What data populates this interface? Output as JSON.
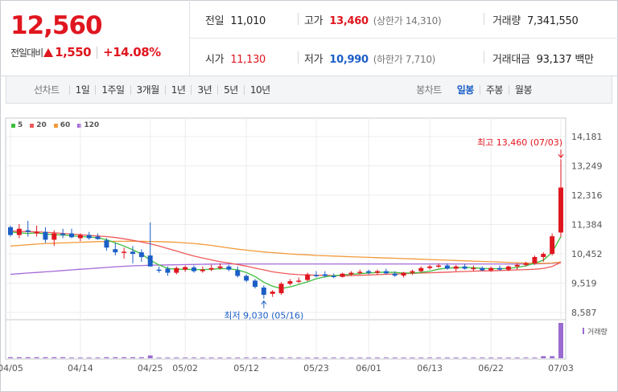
{
  "summary": {
    "price": "12,560",
    "change_label": "전일대비",
    "change_abs": "1,550",
    "change_pct": "+14.08%"
  },
  "stats": {
    "prev_close_label": "전일",
    "prev_close": "11,010",
    "high_label": "고가",
    "high": "13,460",
    "upper_limit": "(상한가 14,310)",
    "volume_label": "거래량",
    "volume": "7,341,550",
    "open_label": "시가",
    "open": "11,130",
    "low_label": "저가",
    "low": "10,990",
    "lower_limit": "(하한가 7,710)",
    "turnover_label": "거래대금",
    "turnover": "93,137",
    "turnover_unit": "백만"
  },
  "toolbar": {
    "line_label": "선차트",
    "line_periods": [
      "1일",
      "1주일",
      "3개월",
      "1년",
      "3년",
      "5년",
      "10년"
    ],
    "candle_label": "봉차트",
    "candle_periods": [
      "일봉",
      "주봉",
      "월봉"
    ],
    "candle_active": "일봉"
  },
  "colors": {
    "up": "#e0161f",
    "down": "#1b5fc6",
    "ma5": "#3dbf3d",
    "ma20": "#ee5a5a",
    "ma60": "#f39a3a",
    "ma120": "#a56ad8",
    "volume": "#9a6bd0"
  },
  "chart_data": {
    "type": "candlestick",
    "legend": [
      "5",
      "20",
      "60",
      "120"
    ],
    "y_ticks": [
      "14,181",
      "13,249",
      "12,316",
      "11,384",
      "10,452",
      "9,519",
      "8,587"
    ],
    "ylim": [
      8587,
      14181
    ],
    "x_labels": [
      "04/05",
      "04/14",
      "04/25",
      "05/02",
      "05/12",
      "05/23",
      "06/01",
      "06/13",
      "06/22",
      "07/03"
    ],
    "high_annotation": "최고 13,460 (07/03)",
    "low_annotation": "최저 9,030 (05/16)",
    "volume_label": "거래량",
    "candles": [
      {
        "x": 0,
        "o": 11300,
        "h": 11350,
        "l": 11000,
        "c": 11050,
        "x_label": "04/05"
      },
      {
        "x": 1,
        "o": 11050,
        "h": 11400,
        "l": 10950,
        "c": 11250
      },
      {
        "x": 2,
        "o": 11200,
        "h": 11500,
        "l": 11000,
        "c": 11150
      },
      {
        "x": 3,
        "o": 11100,
        "h": 11350,
        "l": 11000,
        "c": 11150
      },
      {
        "x": 4,
        "o": 11150,
        "h": 11300,
        "l": 10800,
        "c": 10900
      },
      {
        "x": 5,
        "o": 10900,
        "h": 11200,
        "l": 10700,
        "c": 11100
      },
      {
        "x": 6,
        "o": 11100,
        "h": 11250,
        "l": 10950,
        "c": 11050
      },
      {
        "x": 7,
        "o": 11100,
        "h": 11250,
        "l": 10950,
        "c": 10980
      },
      {
        "x": 8,
        "o": 10950,
        "h": 11100,
        "l": 10850,
        "c": 11050,
        "x_label": "04/14"
      },
      {
        "x": 9,
        "o": 11050,
        "h": 11150,
        "l": 10900,
        "c": 10950
      },
      {
        "x": 10,
        "o": 11000,
        "h": 11100,
        "l": 10900,
        "c": 10920
      },
      {
        "x": 11,
        "o": 10880,
        "h": 10950,
        "l": 10550,
        "c": 10650
      },
      {
        "x": 12,
        "o": 10600,
        "h": 10800,
        "l": 10400,
        "c": 10500
      },
      {
        "x": 13,
        "o": 10500,
        "h": 10650,
        "l": 10300,
        "c": 10520
      },
      {
        "x": 14,
        "o": 10520,
        "h": 10700,
        "l": 10150,
        "c": 10450
      },
      {
        "x": 15,
        "o": 10500,
        "h": 10600,
        "l": 10200,
        "c": 10350
      },
      {
        "x": 16,
        "o": 10400,
        "h": 11450,
        "l": 10100,
        "c": 10050,
        "x_label": "04/25"
      },
      {
        "x": 17,
        "o": 9950,
        "h": 10050,
        "l": 9850,
        "c": 9920
      },
      {
        "x": 18,
        "o": 9980,
        "h": 10050,
        "l": 9750,
        "c": 9850
      },
      {
        "x": 19,
        "o": 9850,
        "h": 10050,
        "l": 9800,
        "c": 10000
      },
      {
        "x": 20,
        "o": 9950,
        "h": 10080,
        "l": 9880,
        "c": 10030,
        "x_label": "05/02"
      },
      {
        "x": 21,
        "o": 10020,
        "h": 10080,
        "l": 9850,
        "c": 9900
      },
      {
        "x": 22,
        "o": 9900,
        "h": 10050,
        "l": 9850,
        "c": 9950
      },
      {
        "x": 23,
        "o": 9950,
        "h": 10100,
        "l": 9900,
        "c": 10000
      },
      {
        "x": 24,
        "o": 10000,
        "h": 10150,
        "l": 9950,
        "c": 10050
      },
      {
        "x": 25,
        "o": 10050,
        "h": 10100,
        "l": 9900,
        "c": 9950
      },
      {
        "x": 26,
        "o": 9930,
        "h": 10050,
        "l": 9700,
        "c": 9750
      },
      {
        "x": 27,
        "o": 9750,
        "h": 9800,
        "l": 9550,
        "c": 9600,
        "x_label": "05/12"
      },
      {
        "x": 28,
        "o": 9600,
        "h": 9650,
        "l": 9350,
        "c": 9400
      },
      {
        "x": 29,
        "o": 9380,
        "h": 9450,
        "l": 9030,
        "c": 9150
      },
      {
        "x": 30,
        "o": 9180,
        "h": 9300,
        "l": 9080,
        "c": 9250
      },
      {
        "x": 31,
        "o": 9200,
        "h": 9550,
        "l": 9150,
        "c": 9500
      },
      {
        "x": 32,
        "o": 9500,
        "h": 9650,
        "l": 9450,
        "c": 9580
      },
      {
        "x": 33,
        "o": 9580,
        "h": 9700,
        "l": 9520,
        "c": 9600
      },
      {
        "x": 34,
        "o": 9620,
        "h": 9850,
        "l": 9580,
        "c": 9800
      },
      {
        "x": 35,
        "o": 9780,
        "h": 9900,
        "l": 9700,
        "c": 9750,
        "x_label": "05/23"
      },
      {
        "x": 36,
        "o": 9800,
        "h": 9900,
        "l": 9700,
        "c": 9750
      },
      {
        "x": 37,
        "o": 9750,
        "h": 9830,
        "l": 9680,
        "c": 9720
      },
      {
        "x": 38,
        "o": 9720,
        "h": 9850,
        "l": 9700,
        "c": 9820
      },
      {
        "x": 39,
        "o": 9800,
        "h": 9900,
        "l": 9750,
        "c": 9850
      },
      {
        "x": 40,
        "o": 9850,
        "h": 9950,
        "l": 9800,
        "c": 9880
      },
      {
        "x": 41,
        "o": 9900,
        "h": 9950,
        "l": 9800,
        "c": 9850,
        "x_label": "06/01"
      },
      {
        "x": 42,
        "o": 9850,
        "h": 9950,
        "l": 9780,
        "c": 9900
      },
      {
        "x": 43,
        "o": 9900,
        "h": 9980,
        "l": 9800,
        "c": 9830
      },
      {
        "x": 44,
        "o": 9820,
        "h": 9900,
        "l": 9720,
        "c": 9760
      },
      {
        "x": 45,
        "o": 9760,
        "h": 9880,
        "l": 9700,
        "c": 9850
      },
      {
        "x": 46,
        "o": 9850,
        "h": 9950,
        "l": 9780,
        "c": 9900
      },
      {
        "x": 47,
        "o": 9900,
        "h": 10050,
        "l": 9850,
        "c": 10000
      },
      {
        "x": 48,
        "o": 10000,
        "h": 10100,
        "l": 9950,
        "c": 10050,
        "x_label": "06/13"
      },
      {
        "x": 49,
        "o": 10050,
        "h": 10150,
        "l": 10000,
        "c": 10080
      },
      {
        "x": 50,
        "o": 10080,
        "h": 10150,
        "l": 9950,
        "c": 9980
      },
      {
        "x": 51,
        "o": 9980,
        "h": 10100,
        "l": 9900,
        "c": 10050
      },
      {
        "x": 52,
        "o": 10050,
        "h": 10120,
        "l": 9950,
        "c": 9980
      },
      {
        "x": 53,
        "o": 9980,
        "h": 10080,
        "l": 9900,
        "c": 10000
      },
      {
        "x": 54,
        "o": 10000,
        "h": 10050,
        "l": 9900,
        "c": 9930
      },
      {
        "x": 55,
        "o": 9930,
        "h": 10050,
        "l": 9880,
        "c": 10000,
        "x_label": "06/22"
      },
      {
        "x": 56,
        "o": 10000,
        "h": 10080,
        "l": 9920,
        "c": 9950
      },
      {
        "x": 57,
        "o": 9950,
        "h": 10080,
        "l": 9900,
        "c": 10050
      },
      {
        "x": 58,
        "o": 10050,
        "h": 10150,
        "l": 9950,
        "c": 10100
      },
      {
        "x": 59,
        "o": 10100,
        "h": 10200,
        "l": 10050,
        "c": 10150
      },
      {
        "x": 60,
        "o": 10150,
        "h": 10400,
        "l": 10100,
        "c": 10350
      },
      {
        "x": 61,
        "o": 10350,
        "h": 10500,
        "l": 10200,
        "c": 10450
      },
      {
        "x": 62,
        "o": 10450,
        "h": 11100,
        "l": 10400,
        "c": 11010
      },
      {
        "x": 63,
        "o": 11130,
        "h": 13460,
        "l": 10990,
        "c": 12560,
        "x_label": "07/03"
      }
    ],
    "volumes": [
      3,
      3,
      3,
      3,
      3,
      3,
      3,
      2,
      2,
      2,
      2,
      3,
      3,
      3,
      3,
      3,
      8,
      2,
      2,
      2,
      2,
      2,
      2,
      2,
      2,
      2,
      2,
      2,
      2,
      3,
      2,
      2,
      2,
      2,
      2,
      2,
      2,
      2,
      2,
      2,
      2,
      2,
      2,
      2,
      2,
      2,
      2,
      2,
      2,
      2,
      2,
      2,
      2,
      2,
      2,
      2,
      2,
      2,
      2,
      2,
      2,
      6,
      6,
      100
    ],
    "ma5": [
      11150,
      11120,
      11100,
      11120,
      11080,
      11060,
      11050,
      11030,
      11000,
      10990,
      10960,
      10900,
      10800,
      10700,
      10580,
      10450,
      10250,
      10100,
      9990,
      9960,
      9960,
      9950,
      9950,
      9960,
      9980,
      9980,
      9940,
      9860,
      9730,
      9550,
      9420,
      9350,
      9400,
      9480,
      9560,
      9660,
      9720,
      9760,
      9780,
      9800,
      9820,
      9840,
      9860,
      9870,
      9860,
      9840,
      9840,
      9860,
      9900,
      9960,
      10000,
      10010,
      10020,
      10010,
      9990,
      9980,
      9980,
      9990,
      10020,
      10070,
      10150,
      10250,
      10500,
      11000
    ],
    "ma20": [
      11180,
      11170,
      11160,
      11150,
      11140,
      11120,
      11100,
      11080,
      11060,
      11040,
      11020,
      11000,
      10970,
      10930,
      10880,
      10830,
      10770,
      10700,
      10620,
      10540,
      10460,
      10380,
      10320,
      10260,
      10200,
      10160,
      10110,
      10060,
      10000,
      9940,
      9880,
      9840,
      9810,
      9790,
      9780,
      9770,
      9770,
      9760,
      9760,
      9760,
      9770,
      9780,
      9790,
      9800,
      9810,
      9820,
      9830,
      9840,
      9850,
      9860,
      9870,
      9880,
      9890,
      9900,
      9910,
      9910,
      9920,
      9930,
      9940,
      9950,
      9960,
      9990,
      10050,
      10180
    ],
    "ma60": [
      10700,
      10720,
      10740,
      10760,
      10780,
      10790,
      10800,
      10810,
      10820,
      10830,
      10840,
      10845,
      10850,
      10850,
      10850,
      10850,
      10845,
      10840,
      10830,
      10820,
      10800,
      10780,
      10750,
      10720,
      10680,
      10640,
      10600,
      10570,
      10540,
      10510,
      10490,
      10470,
      10450,
      10430,
      10420,
      10400,
      10390,
      10380,
      10370,
      10360,
      10350,
      10340,
      10330,
      10320,
      10310,
      10300,
      10290,
      10280,
      10270,
      10260,
      10250,
      10240,
      10230,
      10220,
      10210,
      10200,
      10190,
      10180,
      10170,
      10160,
      10150,
      10150,
      10160,
      10190
    ],
    "ma120": [
      9800,
      9820,
      9840,
      9860,
      9880,
      9900,
      9920,
      9940,
      9960,
      9980,
      10000,
      10020,
      10040,
      10055,
      10070,
      10080,
      10090,
      10095,
      10100,
      10105,
      10110,
      10115,
      10120,
      10125,
      10130,
      10130,
      10130,
      10130,
      10130,
      10130,
      10130,
      10130,
      10130,
      10130,
      10130,
      10130,
      10130,
      10130,
      10130,
      10130,
      10130,
      10130,
      10130,
      10130,
      10130,
      10130,
      10130,
      10130,
      10130,
      10130,
      10130,
      10130,
      10130,
      10130,
      10130,
      10130,
      10130,
      10130,
      10130,
      10130,
      10130,
      10140,
      10150,
      10170
    ]
  }
}
